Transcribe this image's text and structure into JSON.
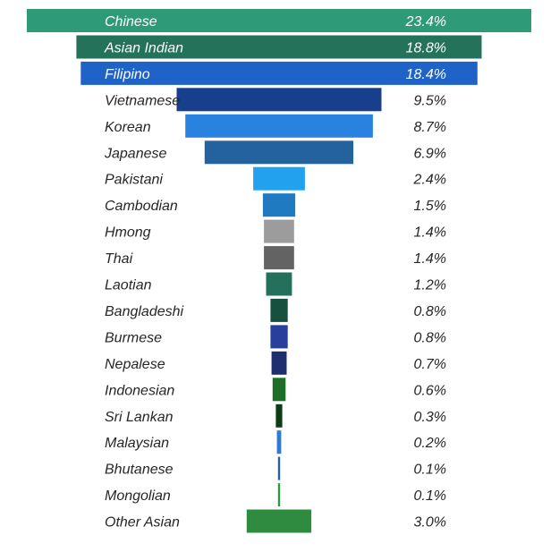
{
  "chart_data": {
    "type": "bar",
    "orientation": "horizontal",
    "layout": "funnel-centered",
    "value_format": "percent-1-decimal",
    "categories": [
      "Chinese",
      "Asian Indian",
      "Filipino",
      "Vietnamese",
      "Korean",
      "Japanese",
      "Pakistani",
      "Cambodian",
      "Hmong",
      "Thai",
      "Laotian",
      "Bangladeshi",
      "Burmese",
      "Nepalese",
      "Indonesian",
      "Sri Lankan",
      "Malaysian",
      "Bhutanese",
      "Mongolian",
      "Other Asian"
    ],
    "values": [
      23.4,
      18.8,
      18.4,
      9.5,
      8.7,
      6.9,
      2.4,
      1.5,
      1.4,
      1.4,
      1.2,
      0.8,
      0.8,
      0.7,
      0.6,
      0.3,
      0.2,
      0.1,
      0.1,
      3.0
    ],
    "value_labels": [
      "23.4%",
      "18.8%",
      "18.4%",
      "9.5%",
      "8.7%",
      "6.9%",
      "2.4%",
      "1.5%",
      "1.4%",
      "1.4%",
      "1.2%",
      "0.8%",
      "0.8%",
      "0.7%",
      "0.6%",
      "0.3%",
      "0.2%",
      "0.1%",
      "0.1%",
      "3.0%"
    ],
    "colors": [
      "#2f9a78",
      "#237259",
      "#1f63c8",
      "#173f8e",
      "#2a82e0",
      "#24629e",
      "#22a2ee",
      "#1f7ac2",
      "#9c9c9c",
      "#636363",
      "#23715a",
      "#18503f",
      "#283f9b",
      "#1e2f6e",
      "#1d6e27",
      "#0f3c15",
      "#2b7bd4",
      "#1e5fa8",
      "#2c9a45",
      "#2f8c3f"
    ],
    "highlight_text_color": "#ffffff",
    "text_color": "#262626",
    "title": "",
    "xlabel": "",
    "ylabel": "",
    "grid": false,
    "legend": "none"
  }
}
